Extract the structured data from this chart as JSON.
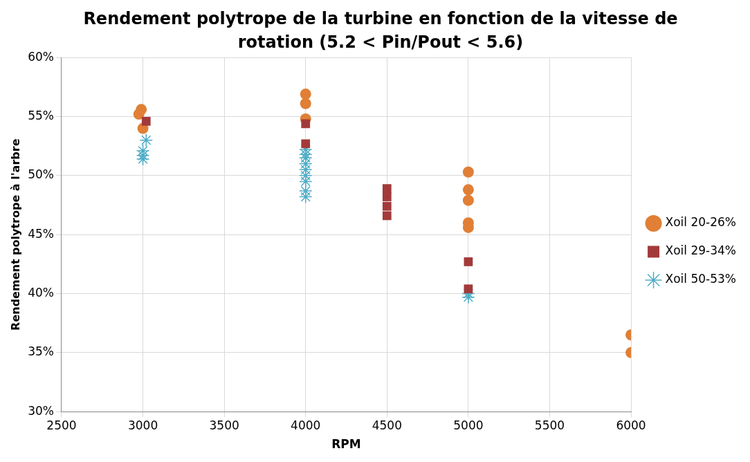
{
  "chart_data": {
    "type": "scatter",
    "title": "Rendement polytrope de la turbine en fonction de la vitesse de rotation (5.2 < Pin/Pout < 5.6)",
    "xlabel": "RPM",
    "ylabel": "Rendement polytrope à l'arbre",
    "xlim": [
      2500,
      6000
    ],
    "xticks": [
      2500,
      3000,
      3500,
      4000,
      4500,
      5000,
      5500,
      6000
    ],
    "ylim": [
      30,
      60
    ],
    "yticks": [
      {
        "value": 30,
        "label": "30%"
      },
      {
        "value": 35,
        "label": "35%"
      },
      {
        "value": 40,
        "label": "40%"
      },
      {
        "value": 45,
        "label": "45%"
      },
      {
        "value": 50,
        "label": "50%"
      },
      {
        "value": 55,
        "label": "55%"
      },
      {
        "value": 60,
        "label": "60%"
      }
    ],
    "grid": true,
    "legend": "right",
    "series": [
      {
        "name": "Xoil 20-26%",
        "color": "#e07f35",
        "marker": "circle",
        "x": [
          2975,
          2990,
          3000,
          4000,
          4000,
          4000,
          5000,
          5000,
          5000,
          5000,
          5000,
          6000,
          6000
        ],
        "values": [
          55.2,
          55.6,
          54.0,
          56.9,
          56.1,
          54.8,
          50.3,
          48.8,
          47.9,
          46.0,
          45.6,
          36.5,
          35.0
        ]
      },
      {
        "name": "Xoil 29-34%",
        "color": "#a33a3a",
        "marker": "square",
        "x": [
          3020,
          4000,
          4000,
          4500,
          4500,
          4500,
          4500,
          5000,
          5000
        ],
        "values": [
          54.6,
          54.4,
          52.7,
          46.6,
          47.4,
          48.2,
          48.9,
          42.7,
          40.4
        ]
      },
      {
        "name": "Xoil 50-53%",
        "color": "#4bacc6",
        "marker": "cross",
        "x": [
          3020,
          3000,
          3000,
          3000,
          4000,
          4000,
          4000,
          4000,
          4000,
          4000,
          4000,
          4000,
          4000,
          5000,
          5000
        ],
        "values": [
          53.0,
          52.1,
          51.7,
          51.4,
          52.2,
          51.8,
          51.5,
          51.0,
          50.5,
          50.0,
          49.5,
          48.7,
          48.2,
          40.0,
          39.7
        ]
      }
    ]
  }
}
